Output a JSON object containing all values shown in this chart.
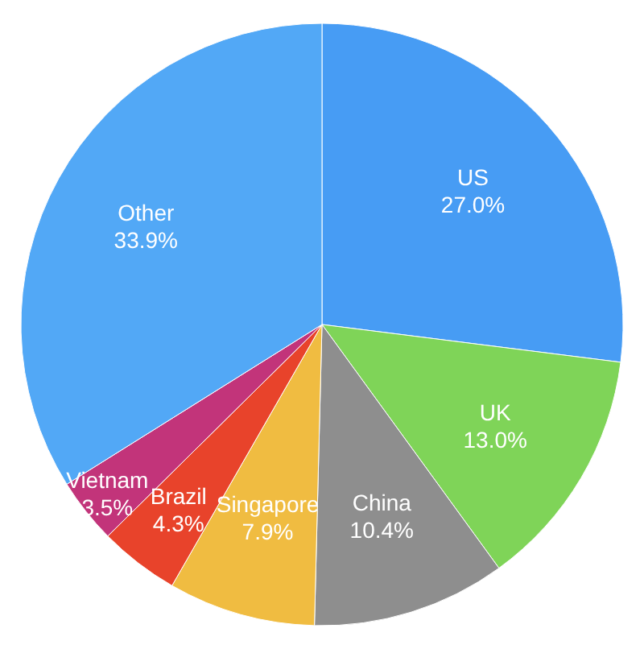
{
  "chart_data": {
    "type": "pie",
    "categories": [
      "US",
      "UK",
      "China",
      "Singapore",
      "Brazil",
      "Vietnam",
      "Other"
    ],
    "values": [
      27.0,
      13.0,
      10.4,
      7.9,
      4.3,
      3.5,
      33.9
    ],
    "colors": [
      "#479cf4",
      "#7fd458",
      "#8e8e8e",
      "#f0bc41",
      "#e8432b",
      "#c2347a",
      "#52a8f6"
    ],
    "value_labels": [
      "27.0%",
      "13.0%",
      "10.4%",
      "7.9%",
      "4.3%",
      "3.5%",
      "33.9%"
    ]
  }
}
